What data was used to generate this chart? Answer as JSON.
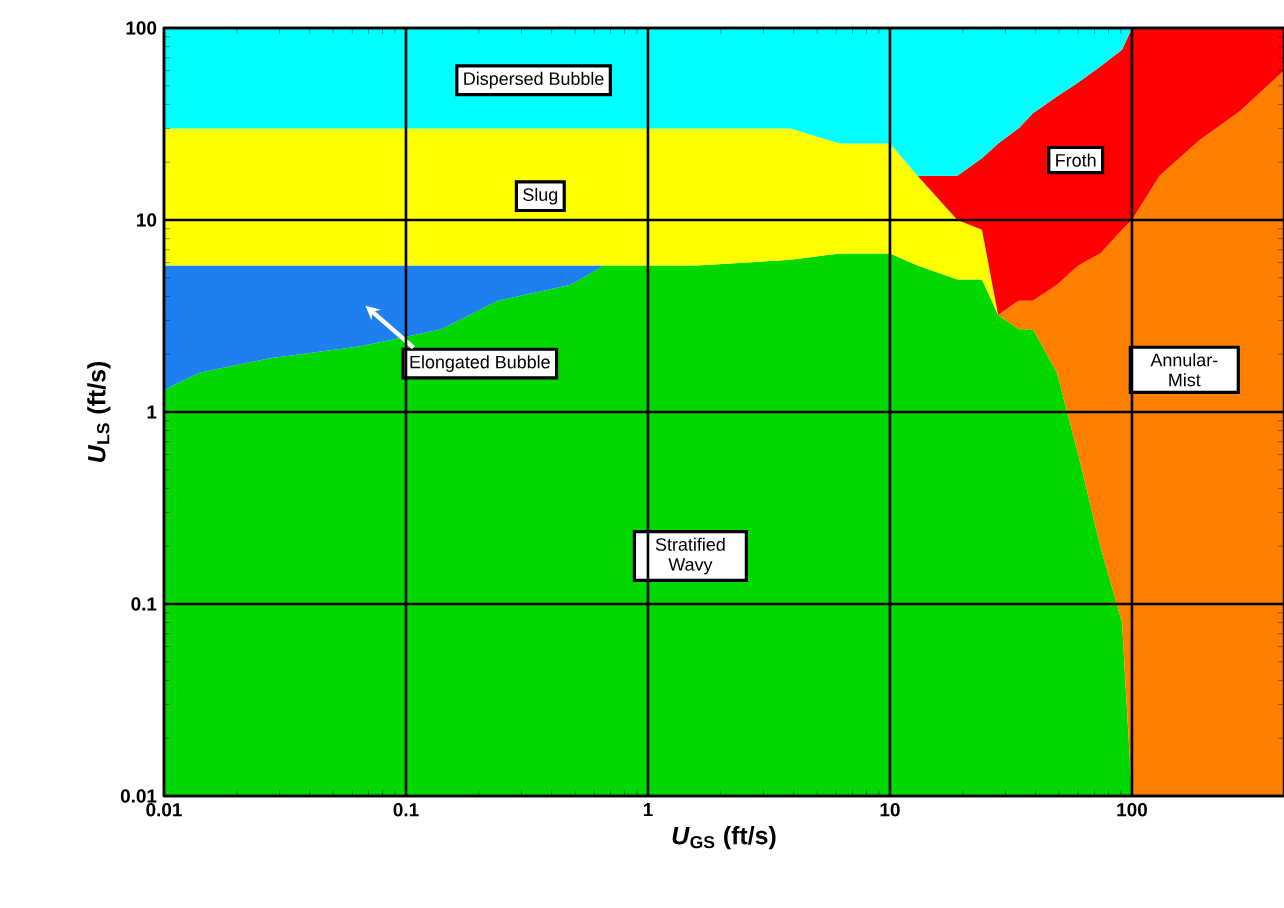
{
  "chart_data": {
    "type": "area",
    "log": "xy",
    "grid": true,
    "xlabel": "*U*$_{GS}$ (ft/s)",
    "ylabel": "*U*$_{LS}$ (ft/s)",
    "xlim": [
      0.01,
      425
    ],
    "ylim": [
      0.01,
      100
    ],
    "xticks": [
      0.01,
      0.1,
      1,
      10,
      100
    ],
    "yticks": [
      0.01,
      0.1,
      1,
      10,
      100
    ],
    "x": [
      0.01,
      0.014,
      0.027,
      0.065,
      0.14,
      0.24,
      0.48,
      0.66,
      1.6,
      3.9,
      6.2,
      10,
      13,
      19,
      24,
      28,
      34,
      39,
      49,
      60,
      74,
      91,
      100,
      130,
      190,
      280,
      425
    ],
    "series": [
      {
        "color": "#00d800",
        "values": [
          1.3,
          1.6,
          1.9,
          2.2,
          2.7,
          3.8,
          4.6,
          5.8,
          5.8,
          6.2,
          6.7,
          6.7,
          5.8,
          4.9,
          4.9,
          3.2,
          2.7,
          2.7,
          1.6,
          0.6,
          0.2,
          0.08,
          0.01,
          null,
          null,
          null,
          null
        ]
      },
      {
        "color": "#1e80f0",
        "values": [
          5.8,
          5.8,
          5.8,
          5.8,
          5.8,
          5.8,
          5.8,
          5.8,
          null,
          null,
          null,
          null,
          null,
          null,
          null,
          null,
          null,
          null,
          null,
          null,
          null,
          null,
          null,
          null,
          null,
          null,
          null
        ]
      },
      {
        "color": "#ff8000",
        "values": [
          null,
          null,
          null,
          null,
          null,
          null,
          null,
          null,
          null,
          null,
          null,
          null,
          null,
          null,
          null,
          3.2,
          3.8,
          3.8,
          4.6,
          5.8,
          6.7,
          8.9,
          10,
          17,
          26,
          37,
          60
        ]
      },
      {
        "color": "#ffff00",
        "values": [
          30,
          30,
          30,
          30,
          30,
          30,
          30,
          30,
          30,
          30,
          25,
          25,
          17,
          10,
          8.9,
          3.2,
          null,
          null,
          null,
          null,
          null,
          null,
          null,
          null,
          null,
          null,
          null
        ]
      },
      {
        "color": "#ff0000",
        "values": [
          null,
          null,
          null,
          null,
          null,
          null,
          null,
          null,
          null,
          null,
          null,
          null,
          17,
          17,
          21,
          25,
          30,
          36,
          44,
          52,
          63,
          77,
          100,
          100,
          100,
          100,
          100
        ]
      },
      {
        "color": "#00ffff",
        "values": [
          100,
          100,
          100,
          100,
          100,
          100,
          100,
          100,
          100,
          100,
          100,
          100,
          100,
          100,
          100,
          100,
          100,
          100,
          100,
          100,
          100,
          100,
          100,
          null,
          null,
          null,
          null
        ]
      }
    ],
    "annotations": [
      "Dispersed Bubble",
      "Slug",
      "Froth",
      "Elongated Bubble",
      "Annular-Mist",
      "Stratified Wavy"
    ]
  }
}
